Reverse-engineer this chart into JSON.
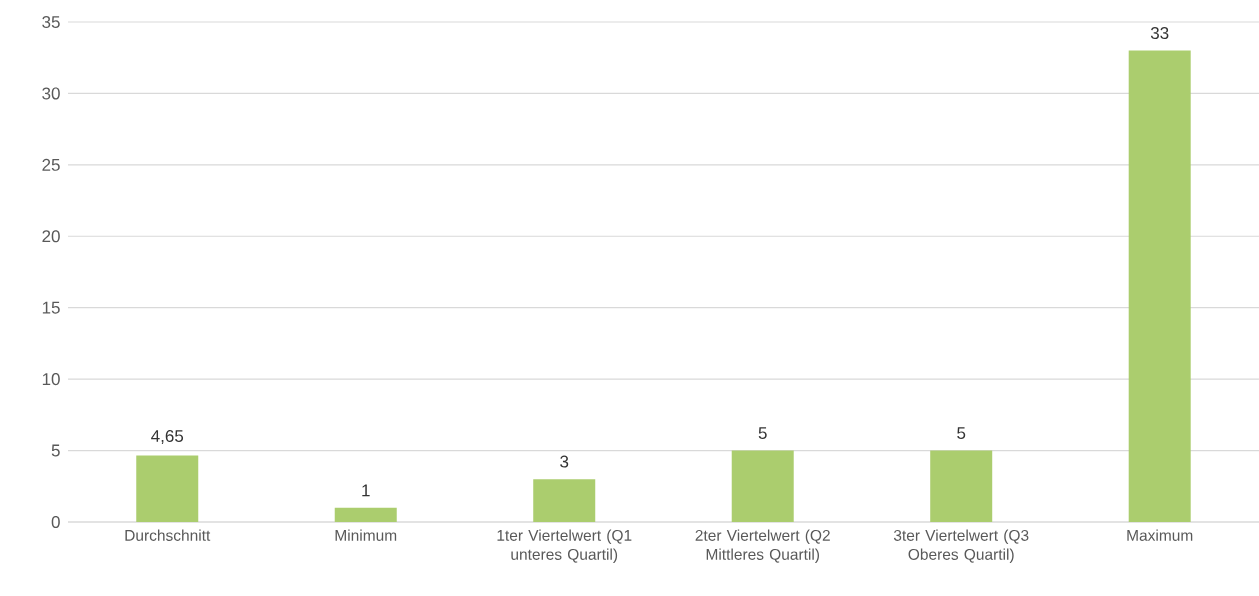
{
  "chart_data": {
    "type": "bar",
    "categories": [
      "Durchschnitt",
      "Minimum",
      "1ter Viertelwert (Q1 unteres Quartil)",
      "2ter Viertelwert (Q2 Mittleres Quartil)",
      "3ter Viertelwert (Q3 Oberes Quartil)",
      "Maximum"
    ],
    "values": [
      4.65,
      1,
      3,
      5,
      5,
      33
    ],
    "value_labels": [
      "4,65",
      "1",
      "3",
      "5",
      "5",
      "33"
    ],
    "color": "#abcd6e",
    "ylim": [
      0,
      35
    ],
    "yticks": [
      0,
      5,
      10,
      15,
      20,
      25,
      30,
      35
    ],
    "grid": "y"
  }
}
